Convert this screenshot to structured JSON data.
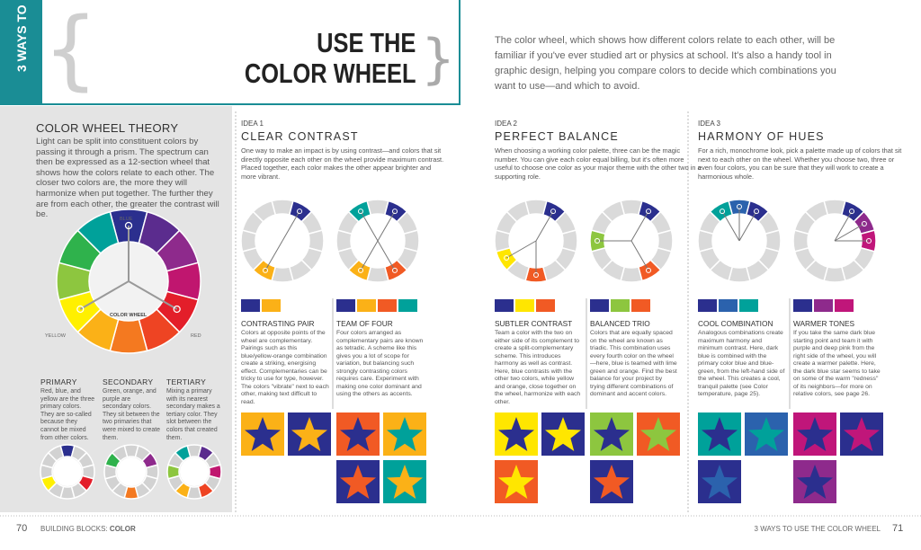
{
  "header": {
    "tab": "3 WAYS TO",
    "title_lines": [
      "USE THE",
      "COLOR WHEEL"
    ],
    "intro": "The color wheel, which shows how different colors relate to each other, will be familiar if you've ever studied art or physics at school. It's also a handy tool in graphic design, helping you compare colors to decide which combinations you want to use—and which to avoid."
  },
  "theory": {
    "title": "COLOR WHEEL THEORY",
    "body": "Light can be split into constituent colors by passing it through a prism. The spectrum can then be expressed as a 12-section wheel that shows how the colors relate to each other. The closer two colors are, the more they will harmonize when put together. The further they are from each other, the greater the contrast will be.",
    "wheel_labels": {
      "top": "BLUE",
      "left": "YELLOW",
      "right": "RED",
      "center": "COLOR WHEEL"
    },
    "columns": [
      {
        "title": "PRIMARY",
        "body": "Red, blue, and yellow are the three primary colors. They are so-called because they cannot be mixed from other colors."
      },
      {
        "title": "SECONDARY",
        "body": "Green, orange, and purple are secondary colors. They sit between the two primaries that were mixed to create them."
      },
      {
        "title": "TERTIARY",
        "body": "Mixing a primary with its nearest secondary makes a tertiary color. They slot between the colors that created them."
      }
    ]
  },
  "ideas": [
    {
      "label": "IDEA 1",
      "title": "CLEAR CONTRAST",
      "body": "One way to make an impact is by using contrast—and colors that sit directly opposite each other on the wheel provide maximum contrast. Placed together, each color makes the other appear brighter and more vibrant.",
      "examples": [
        {
          "title": "CONTRASTING PAIR",
          "body": "Colors at opposite points of the wheel are complementary. Pairings such as this blue/yellow-orange combination create a striking, energising effect. Complementaries can be tricky to use for type, however. The colors \"vibrate\" next to each other, making text difficult to read."
        },
        {
          "title": "TEAM OF FOUR",
          "body": "Four colors arranged as complementary pairs are known as tetradic. A scheme like this gives you a lot of scope for variation, but balancing such strongly contrasting colors requires care. Experiment with making one color dominant and using the others as accents."
        }
      ]
    },
    {
      "label": "IDEA 2",
      "title": "PERFECT BALANCE",
      "body": "When choosing a working color palette, three can be the magic number. You can give each color equal billing, but it's often more useful to choose one color as your major theme with the other two in a supporting role.",
      "examples": [
        {
          "title": "SUBTLER CONTRAST",
          "body": "Team a color with the two on either side of its complement to create a split-complementary scheme. This introduces harmony as well as contrast. Here, blue contrasts with the other two colors, while yellow and orange, close together on the wheel, harmonize with each other."
        },
        {
          "title": "BALANCED TRIO",
          "body": "Colors that are equally spaced on the wheel are known as triadic. This combination uses every fourth color on the wheel—here, blue is teamed with lime green and orange. Find the best balance for your project by trying different combinations of dominant and accent colors."
        }
      ]
    },
    {
      "label": "IDEA 3",
      "title": "HARMONY OF HUES",
      "body": "For a rich, monochrome look, pick a palette made up of colors that sit next to each other on the wheel. Whether you choose two, three or even four colors, you can be sure that they will work to create a harmonious whole.",
      "examples": [
        {
          "title": "COOL COMBINATION",
          "body": "Analogous combinations create maximum harmony and minimum contrast. Here, dark blue is combined with the primary color blue and blue-green, from the left-hand side of the wheel. This creates a cool, tranquil palette (see Color temperature, page 25)."
        },
        {
          "title": "WARMER TONES",
          "body": "If you take the same dark blue starting point and team it with purple and deep pink from the right side of the wheel, you will create a warmer palette. Here, the dark blue star seems to take on some of the warm \"redness\" of its neighbors—for more on relative colors, see page 26."
        }
      ]
    }
  ],
  "footer": {
    "left_page": "70",
    "left_section": "BUILDING BLOCKS:",
    "left_topic": "COLOR",
    "right_title": "3 WAYS TO USE THE COLOR WHEEL",
    "right_page": "71"
  }
}
